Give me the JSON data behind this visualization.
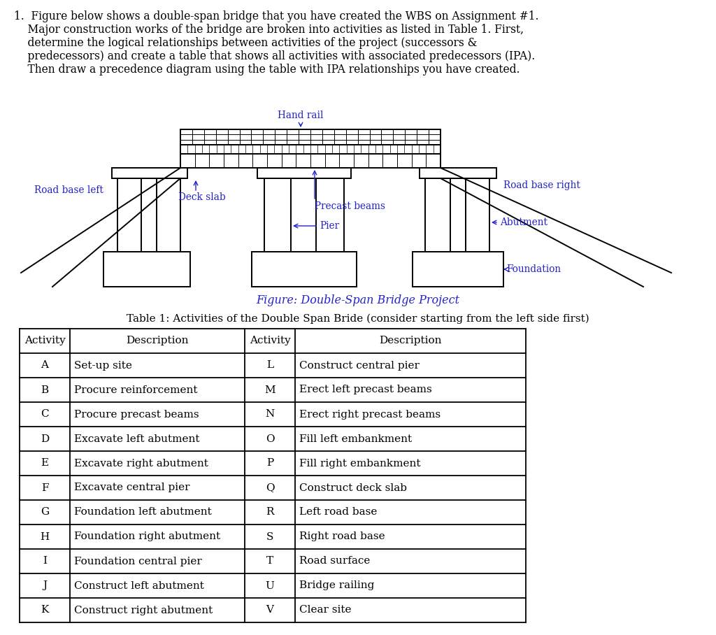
{
  "bg_color": "#ffffff",
  "text_color": "#000000",
  "label_color": "#2222cc",
  "question_lines": [
    "1.  Figure below shows a double-span bridge that you have created the WBS on Assignment #1.",
    "    Major construction works of the bridge are broken into activities as listed in Table 1. First,",
    "    determine the logical relationships between activities of the project (successors &",
    "    predecessors) and create a table that shows all activities with associated predecessors (IPA).",
    "    Then draw a precedence diagram using the table with IPA relationships you have created."
  ],
  "figure_caption": "Figure: Double-Span Bridge Project",
  "table_title": "Table 1: Activities of the Double Span Bride (consider starting from the left side first)",
  "table_headers": [
    "Activity",
    "Description",
    "Activity",
    "Description"
  ],
  "table_rows": [
    [
      "A",
      "Set-up site",
      "L",
      "Construct central pier"
    ],
    [
      "B",
      "Procure reinforcement",
      "M",
      "Erect left precast beams"
    ],
    [
      "C",
      "Procure precast beams",
      "N",
      "Erect right precast beams"
    ],
    [
      "D",
      "Excavate left abutment",
      "O",
      "Fill left embankment"
    ],
    [
      "E",
      "Excavate right abutment",
      "P",
      "Fill right embankment"
    ],
    [
      "F",
      "Excavate central pier",
      "Q",
      "Construct deck slab"
    ],
    [
      "G",
      "Foundation left abutment",
      "R",
      "Left road base"
    ],
    [
      "H",
      "Foundation right abutment",
      "S",
      "Right road base"
    ],
    [
      "I",
      "Foundation central pier",
      "T",
      "Road surface"
    ],
    [
      "J",
      "Construct left abutment",
      "U",
      "Bridge railing"
    ],
    [
      "K",
      "Construct right abutment",
      "V",
      "Clear site"
    ]
  ],
  "bridge": {
    "hand_rail_label": "Hand rail",
    "road_base_left_label": "Road base left",
    "road_base_right_label": "Road base right",
    "deck_slab_label": "Deck slab",
    "precast_beams_label": "Precast beams",
    "pier_label": "Pier",
    "abutment_label": "Abutment",
    "foundation_label": "Foundation"
  }
}
